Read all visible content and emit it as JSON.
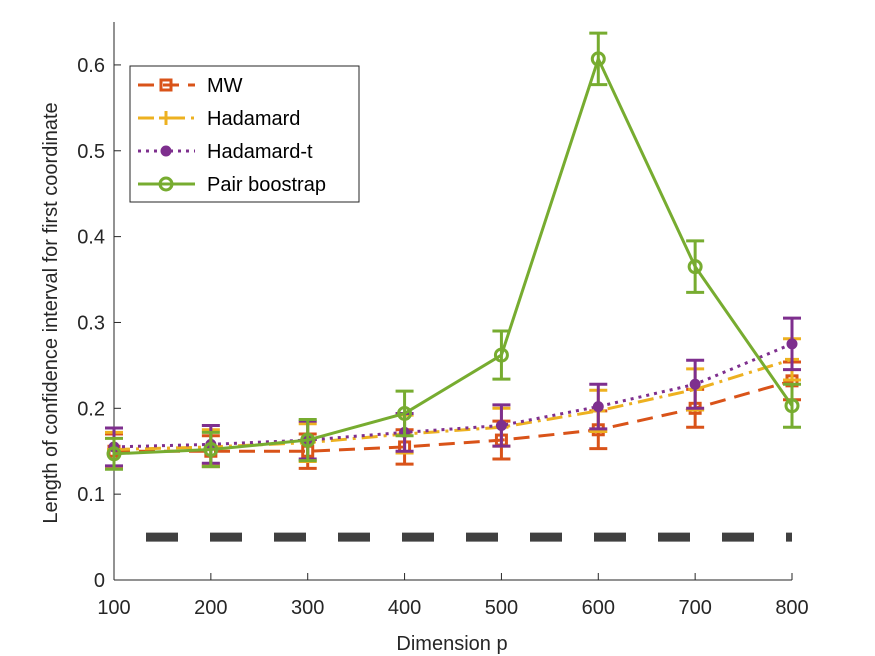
{
  "chart_data": {
    "type": "line",
    "title": "",
    "xlabel": "Dimension p",
    "ylabel": "Length of confidence interval for first coordinate",
    "xlim": [
      100,
      800
    ],
    "ylim": [
      0,
      0.65
    ],
    "xticks": [
      100,
      200,
      300,
      400,
      500,
      600,
      700,
      800
    ],
    "yticks": [
      0,
      0.1,
      0.2,
      0.3,
      0.4,
      0.5,
      0.6
    ],
    "ytick_labels": [
      "0",
      "0.1",
      "0.2",
      "0.3",
      "0.4",
      "0.5",
      "0.6"
    ],
    "grid": false,
    "legend_position": "top-left",
    "x": [
      100,
      200,
      300,
      400,
      500,
      600,
      700,
      800
    ],
    "series": [
      {
        "name": "MW",
        "color": "#D95319",
        "line_style": "dashed",
        "marker": "square",
        "values": [
          0.15,
          0.15,
          0.15,
          0.155,
          0.163,
          0.175,
          0.2,
          0.232
        ],
        "errors": [
          0.02,
          0.018,
          0.02,
          0.02,
          0.022,
          0.022,
          0.022,
          0.022
        ]
      },
      {
        "name": "Hadamard",
        "color": "#EDB120",
        "line_style": "dashdot",
        "marker": "plus",
        "values": [
          0.152,
          0.155,
          0.16,
          0.17,
          0.178,
          0.197,
          0.222,
          0.257
        ],
        "errors": [
          0.02,
          0.02,
          0.022,
          0.022,
          0.022,
          0.024,
          0.024,
          0.024
        ]
      },
      {
        "name": "Hadamard-t",
        "color": "#7E2F8E",
        "line_style": "dotted",
        "marker": "circle-filled",
        "values": [
          0.155,
          0.158,
          0.163,
          0.172,
          0.18,
          0.202,
          0.228,
          0.275
        ],
        "errors": [
          0.022,
          0.022,
          0.022,
          0.022,
          0.024,
          0.026,
          0.028,
          0.03
        ]
      },
      {
        "name": "Pair boostrap",
        "color": "#77AC30",
        "line_style": "solid",
        "marker": "circle-open",
        "values": [
          0.147,
          0.152,
          0.163,
          0.194,
          0.262,
          0.607,
          0.365,
          0.203
        ],
        "errors": [
          0.018,
          0.02,
          0.024,
          0.026,
          0.028,
          0.03,
          0.03,
          0.025
        ]
      }
    ],
    "reference_line": {
      "y": 0.05,
      "color": "#404040",
      "line_style": "dashed"
    }
  }
}
